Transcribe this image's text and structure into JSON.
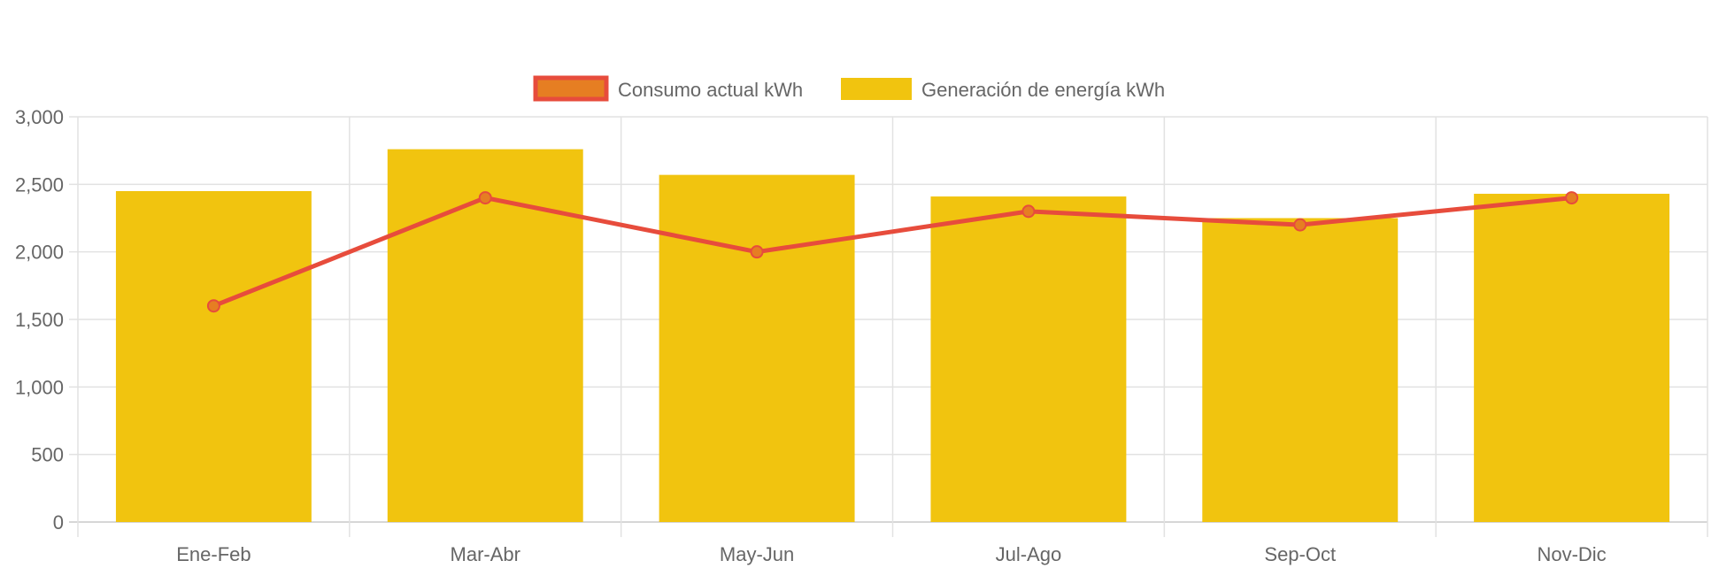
{
  "chart_data": {
    "type": "bar",
    "title": "",
    "xlabel": "",
    "ylabel": "",
    "categories": [
      "Ene-Feb",
      "Mar-Abr",
      "May-Jun",
      "Jul-Ago",
      "Sep-Oct",
      "Nov-Dic"
    ],
    "series": [
      {
        "name": "Consumo actual kWh",
        "type": "line",
        "values": [
          1600,
          2400,
          2000,
          2300,
          2200,
          2400
        ],
        "color": "#e74c3c",
        "point_color": "#e67e22"
      },
      {
        "name": "Generación de energía kWh",
        "type": "bar",
        "values": [
          2450,
          2760,
          2570,
          2410,
          2250,
          2430
        ],
        "color": "#f1c40f"
      }
    ],
    "ylim": [
      0,
      3000
    ],
    "yticks": [
      0,
      500,
      1000,
      1500,
      2000,
      2500,
      3000
    ],
    "ytick_labels": [
      "0",
      "500",
      "1,000",
      "1,500",
      "2,000",
      "2,500",
      "3,000"
    ],
    "grid": true,
    "legend_position": "top-center"
  }
}
